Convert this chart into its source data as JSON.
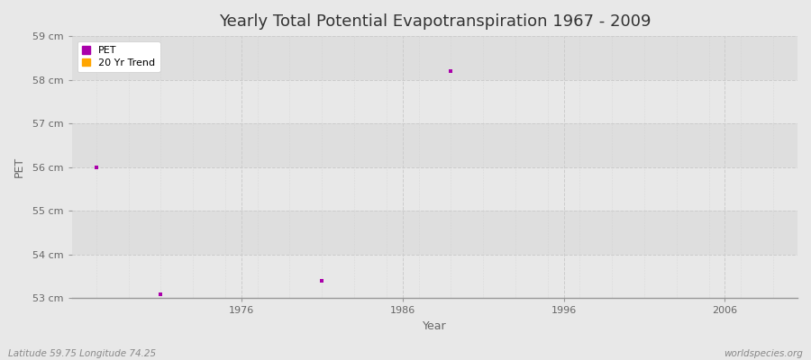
{
  "title": "Yearly Total Potential Evapotranspiration 1967 - 2009",
  "xlabel": "Year",
  "ylabel": "PET",
  "background_color": "#e8e8e8",
  "plot_bg_color": "#e8e8e8",
  "band_color_light": "#ebebeb",
  "band_color_dark": "#e0e0e0",
  "grid_color": "#cccccc",
  "pet_color": "#aa00aa",
  "trend_color": "#ffa500",
  "pet_points": [
    [
      1967,
      56.0
    ],
    [
      1971,
      53.1
    ],
    [
      1981,
      53.4
    ],
    [
      1989,
      58.2
    ]
  ],
  "ylim": [
    53,
    59
  ],
  "xlim": [
    1965.5,
    2010.5
  ],
  "yticks": [
    53,
    54,
    55,
    56,
    57,
    58,
    59
  ],
  "xticks": [
    1976,
    1986,
    1996,
    2006
  ],
  "footnote_left": "Latitude 59.75 Longitude 74.25",
  "footnote_right": "worldspecies.org",
  "title_fontsize": 13,
  "axis_label_fontsize": 9,
  "tick_fontsize": 8,
  "footnote_fontsize": 7.5
}
